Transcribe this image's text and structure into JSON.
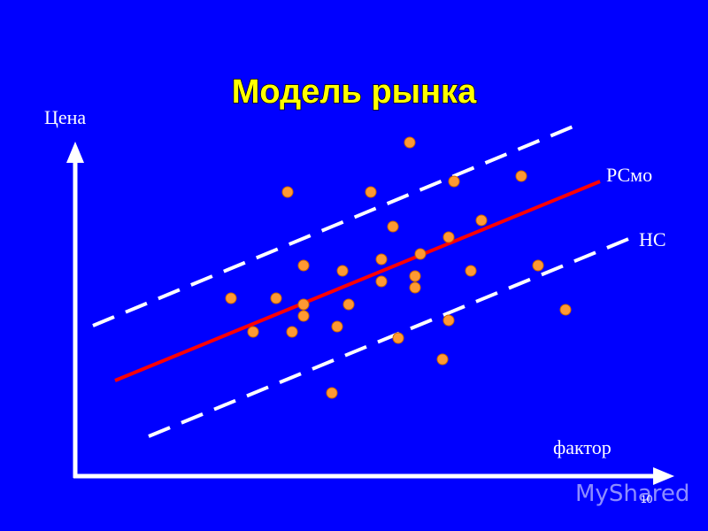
{
  "title": "Модель рынка",
  "y_axis_label": "Цена",
  "x_axis_label": "фактор",
  "line_labels": [
    "РСмо",
    "НС"
  ],
  "slide_number": "10",
  "watermark": "MyShared"
}
